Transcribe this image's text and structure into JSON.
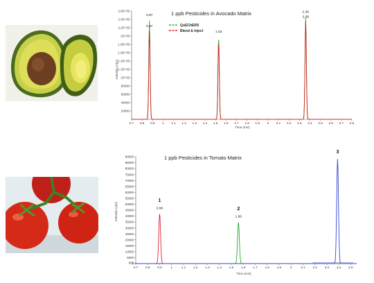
{
  "chart_data": [
    {
      "type": "line",
      "title": "1 ppb Pesticides in Avocado Matrix",
      "xlabel": "Time (min)",
      "ylabel": "Intensity (cps)",
      "xlim": [
        0.7,
        2.8
      ],
      "ylim": [
        0,
        260000
      ],
      "x_ticks": [
        "0.7",
        "0.8",
        "0.9",
        "1",
        "1.1",
        "1.2",
        "1.3",
        "1.4",
        "1.5",
        "1.6",
        "1.7",
        "1.8",
        "1.9",
        "2",
        "2.1",
        "2.2",
        "2.3",
        "2.4",
        "2.5",
        "2.6",
        "2.7",
        "2.8"
      ],
      "y_ticks": [
        "20000",
        "40000",
        "60000",
        "80000",
        "1E+05",
        "1.2E+05",
        "1.4E+05",
        "1.6E+05",
        "1.8E+05",
        "2E+05",
        "2.2E+05",
        "2.4E+05",
        "2.6E+05"
      ],
      "legend_position": "top-left",
      "grid": false,
      "series": [
        {
          "name": "QuEChERS",
          "color": "#3cb33c",
          "peaks": [
            {
              "x": 0.87,
              "y": 238000
            },
            {
              "x": 1.53,
              "y": 198000
            },
            {
              "x": 2.36,
              "y": 246000
            }
          ]
        },
        {
          "name": "Blend & Inject",
          "color": "#d42020",
          "peaks": [
            {
              "x": 0.87,
              "y": 212000
            },
            {
              "x": 1.53,
              "y": 188000
            },
            {
              "x": 2.36,
              "y": 236000
            }
          ]
        }
      ],
      "annotations": [
        {
          "text": "0.87",
          "x": 0.87,
          "y": 248000
        },
        {
          "text": "0.87",
          "x": 0.87,
          "y": 222000
        },
        {
          "text": "1.53",
          "x": 1.53,
          "y": 208000
        },
        {
          "text": "2.36",
          "x": 2.36,
          "y": 256000
        },
        {
          "text": "2.36",
          "x": 2.36,
          "y": 244000
        }
      ]
    },
    {
      "type": "line",
      "title": "1 ppb Pesticides in Tomato Matrix",
      "xlabel": "Time (min)",
      "ylabel": "Intensity (cps)",
      "xlim": [
        0.7,
        2.55
      ],
      "ylim": [
        0,
        90000
      ],
      "x_ticks": [
        "0.7",
        "0.8",
        "0.9",
        "1",
        "1.1",
        "1.2",
        "1.3",
        "1.4",
        "1.5",
        "1.6",
        "1.7",
        "1.8",
        "1.9",
        "2",
        "2.1",
        "2.2",
        "2.3",
        "2.4",
        "2.5"
      ],
      "y_ticks": [
        "0",
        "500",
        "5000",
        "10000",
        "15000",
        "20000",
        "25000",
        "30000",
        "35000",
        "40000",
        "45000",
        "50000",
        "55000",
        "60000",
        "65000",
        "70000",
        "75000",
        "80000",
        "85000",
        "90000"
      ],
      "grid": false,
      "series": [
        {
          "color": "#e0202a",
          "peaks": [
            {
              "x": 0.9,
              "y": 42000
            }
          ]
        },
        {
          "color": "#22aa33",
          "peaks": [
            {
              "x": 1.56,
              "y": 35000
            }
          ]
        },
        {
          "color": "#3344cc",
          "peaks": [
            {
              "x": 2.39,
              "y": 88000
            }
          ]
        }
      ],
      "annotations": [
        {
          "text": "1",
          "bold": true,
          "x": 0.9,
          "y": 52000
        },
        {
          "text": "0.90",
          "x": 0.9,
          "y": 46000
        },
        {
          "text": "2",
          "bold": true,
          "x": 1.56,
          "y": 45000
        },
        {
          "text": "1.56",
          "x": 1.56,
          "y": 39000
        },
        {
          "text": "3",
          "bold": true,
          "x": 2.39,
          "y": 93000
        }
      ]
    }
  ],
  "colors": {
    "axis": "#555555",
    "avocado_skin": "#4a6a1e",
    "avocado_flesh": "#d6d64a",
    "avocado_seed": "#7a4a25",
    "tomato": "#d82a1a",
    "stem": "#3f8a2a"
  },
  "icons": {
    "avocado": "avocado-photo",
    "tomato": "tomato-photo"
  }
}
